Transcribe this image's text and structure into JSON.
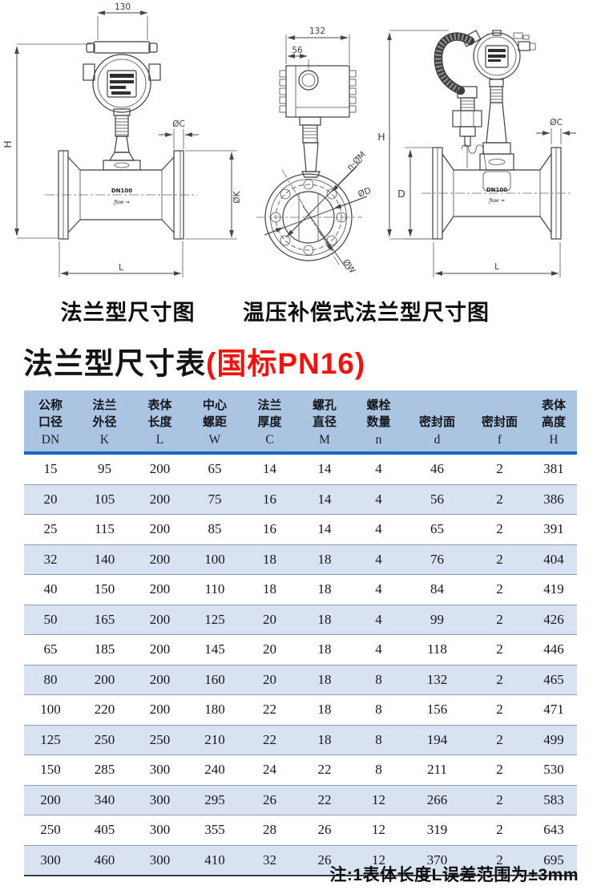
{
  "drawings": {
    "left": {
      "caption": "法兰型尺寸图",
      "dim_width": "130",
      "dim_height": "H",
      "dim_flange_thickness": "ØC",
      "dim_flange_od": "ØK",
      "dim_length": "L",
      "pipe_label": "DN100",
      "pipe_logo": "ƒlow ⇒"
    },
    "front": {
      "dim_width": "132",
      "dim_offset": "56",
      "dim_bolt_holes": "n-ØM",
      "dim_bore": "ØD",
      "dim_outer": "ØW"
    },
    "right": {
      "caption": "温压补偿式法兰型尺寸图",
      "dim_height": "H",
      "dim_pipe_od": "D",
      "dim_flange_thickness": "ØC",
      "dim_length": "L",
      "pipe_label": "DN100",
      "pipe_logo": "ƒlow ⇒"
    }
  },
  "table": {
    "title": "法兰型尺寸表",
    "title_suffix": "(国标PN16)",
    "note": "注:1表体长度L误差范围为±3mm",
    "columns": [
      {
        "line1": "公称",
        "line2": "口径",
        "symbol": "DN"
      },
      {
        "line1": "法兰",
        "line2": "外径",
        "symbol": "K"
      },
      {
        "line1": "表体",
        "line2": "长度",
        "symbol": "L"
      },
      {
        "line1": "中心",
        "line2": "螺距",
        "symbol": "W"
      },
      {
        "line1": "法兰",
        "line2": "厚度",
        "symbol": "C"
      },
      {
        "line1": "螺孔",
        "line2": "直径",
        "symbol": "M"
      },
      {
        "line1": "螺栓",
        "line2": "数量",
        "symbol": "n"
      },
      {
        "line1": "",
        "line2": "密封面",
        "symbol": "d"
      },
      {
        "line1": "",
        "line2": "密封面",
        "symbol": "f"
      },
      {
        "line1": "表体",
        "line2": "高度",
        "symbol": "H"
      }
    ],
    "rows": [
      [
        15,
        95,
        200,
        65,
        14,
        14,
        4,
        46,
        2,
        381
      ],
      [
        20,
        105,
        200,
        75,
        16,
        14,
        4,
        56,
        2,
        386
      ],
      [
        25,
        115,
        200,
        85,
        16,
        14,
        4,
        65,
        2,
        391
      ],
      [
        32,
        140,
        200,
        100,
        18,
        18,
        4,
        76,
        2,
        404
      ],
      [
        40,
        150,
        200,
        110,
        18,
        18,
        4,
        84,
        2,
        419
      ],
      [
        50,
        165,
        200,
        125,
        20,
        18,
        4,
        99,
        2,
        426
      ],
      [
        65,
        185,
        200,
        145,
        20,
        18,
        4,
        118,
        2,
        446
      ],
      [
        80,
        200,
        200,
        160,
        20,
        18,
        8,
        132,
        2,
        465
      ],
      [
        100,
        220,
        200,
        180,
        22,
        18,
        8,
        156,
        2,
        471
      ],
      [
        125,
        250,
        250,
        210,
        22,
        18,
        8,
        194,
        2,
        499
      ],
      [
        150,
        285,
        300,
        240,
        24,
        22,
        8,
        211,
        2,
        530
      ],
      [
        200,
        340,
        300,
        295,
        26,
        22,
        12,
        266,
        2,
        583
      ],
      [
        250,
        405,
        300,
        355,
        28,
        26,
        12,
        319,
        2,
        643
      ],
      [
        300,
        460,
        300,
        410,
        32,
        26,
        12,
        370,
        2,
        695
      ]
    ]
  },
  "colors": {
    "header_bg": "#abc4e1",
    "header_rule": "#1668c0",
    "row_alt_bg": "#d8e2f1",
    "row_line": "#8f9dab",
    "table_bottom_rule": "#313e4c",
    "title_red": "#ee1410",
    "drawing_line": "#3f3f3f"
  }
}
